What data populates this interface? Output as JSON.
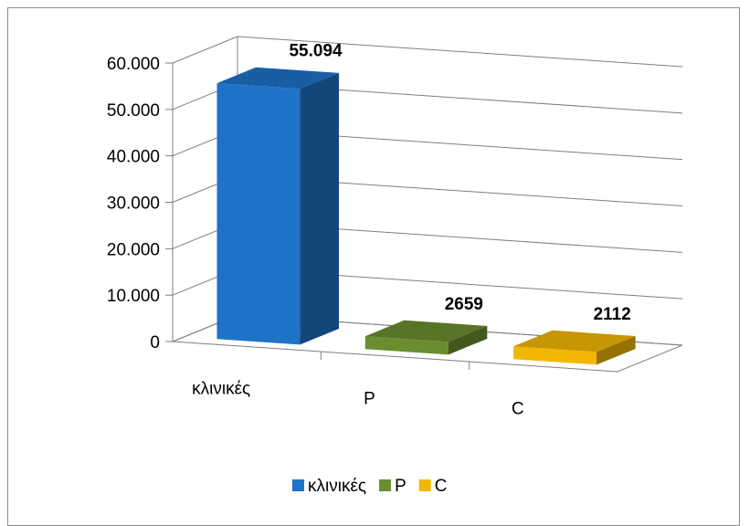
{
  "chart_data": {
    "type": "bar",
    "style": "3d-column",
    "categories": [
      "κλινικές",
      "P",
      "C"
    ],
    "values": [
      55094,
      2659,
      2112
    ],
    "data_labels": [
      "55.094",
      "2659",
      "2112"
    ],
    "colors": [
      "#1e73c8",
      "#6a8e2f",
      "#f2b705"
    ],
    "ylim": [
      0,
      60000
    ],
    "yticks": [
      0,
      10000,
      20000,
      30000,
      40000,
      50000,
      60000
    ],
    "ytick_labels": [
      "0",
      "10.000",
      "20.000",
      "30.000",
      "40.000",
      "50.000",
      "60.000"
    ],
    "title": "",
    "xlabel": "",
    "ylabel": "",
    "grid": true,
    "legend": {
      "position": "bottom",
      "entries": [
        {
          "label": "κλινικές",
          "color": "#1e73c8"
        },
        {
          "label": "P",
          "color": "#6a8e2f"
        },
        {
          "label": "C",
          "color": "#f2b705"
        }
      ]
    }
  }
}
